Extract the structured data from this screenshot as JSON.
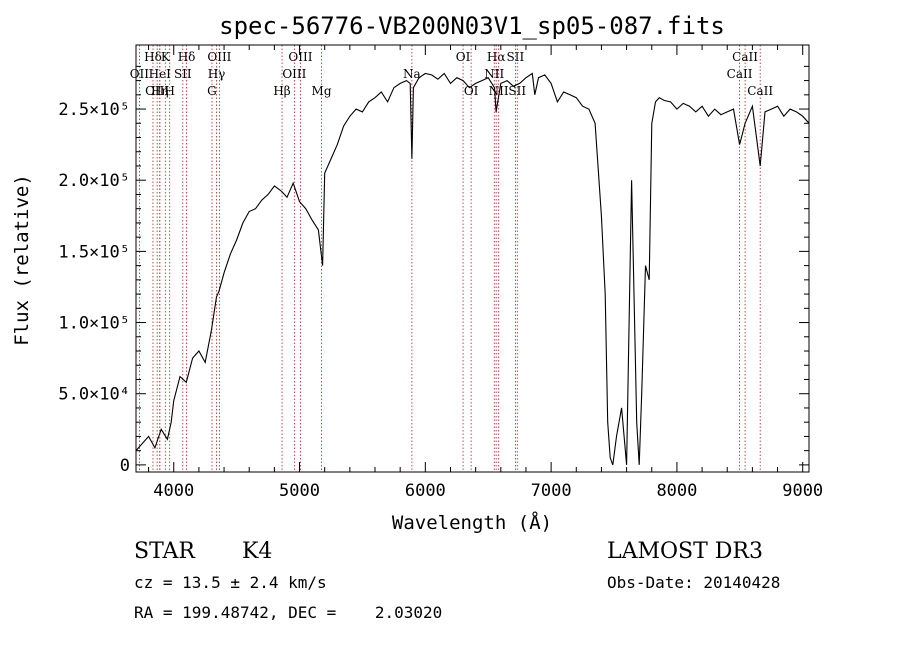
{
  "chart_data": {
    "type": "line",
    "title": "spec-56776-VB200N03V1_sp05-087.fits",
    "xlabel": "Wavelength (Å)",
    "ylabel": "Flux (relative)",
    "xlim": [
      3700,
      9050
    ],
    "ylim": [
      -5000,
      295000
    ],
    "x_ticks": [
      4000,
      5000,
      6000,
      7000,
      8000,
      9000
    ],
    "x_tick_labels": [
      "4000",
      "5000",
      "6000",
      "7000",
      "8000",
      "9000"
    ],
    "y_ticks": [
      0,
      50000,
      100000,
      150000,
      200000,
      250000
    ],
    "y_tick_labels": [
      "0",
      "5.0×10⁴",
      "1.0×10⁵",
      "1.5×10⁵",
      "2.0×10⁵",
      "2.5×10⁵"
    ],
    "series": [
      {
        "name": "spectrum",
        "x": [
          3700,
          3750,
          3800,
          3850,
          3900,
          3950,
          3980,
          4000,
          4050,
          4100,
          4150,
          4200,
          4250,
          4300,
          4340,
          4360,
          4400,
          4450,
          4500,
          4550,
          4600,
          4650,
          4700,
          4750,
          4800,
          4860,
          4900,
          4950,
          5000,
          5050,
          5100,
          5150,
          5183,
          5200,
          5250,
          5300,
          5350,
          5400,
          5450,
          5500,
          5550,
          5600,
          5650,
          5700,
          5750,
          5800,
          5850,
          5880,
          5893,
          5905,
          5950,
          6000,
          6050,
          6100,
          6150,
          6200,
          6250,
          6300,
          6350,
          6400,
          6450,
          6500,
          6550,
          6563,
          6600,
          6650,
          6700,
          6750,
          6800,
          6850,
          6870,
          6900,
          6950,
          7000,
          7050,
          7100,
          7150,
          7200,
          7250,
          7300,
          7350,
          7400,
          7430,
          7450,
          7470,
          7490,
          7520,
          7560,
          7600,
          7640,
          7680,
          7700,
          7720,
          7750,
          7780,
          7800,
          7830,
          7860,
          7900,
          7950,
          8000,
          8050,
          8100,
          8150,
          8200,
          8250,
          8300,
          8350,
          8400,
          8450,
          8498,
          8542,
          8600,
          8662,
          8700,
          8750,
          8800,
          8850,
          8900,
          8950,
          9000,
          9050
        ],
        "y": [
          10000,
          15000,
          20000,
          12000,
          25000,
          18000,
          30000,
          45000,
          62000,
          58000,
          75000,
          80000,
          72000,
          95000,
          118000,
          122000,
          135000,
          148000,
          158000,
          170000,
          178000,
          180000,
          186000,
          190000,
          196000,
          192000,
          188000,
          198000,
          185000,
          180000,
          172000,
          165000,
          140000,
          205000,
          215000,
          225000,
          238000,
          245000,
          250000,
          248000,
          255000,
          258000,
          262000,
          255000,
          265000,
          268000,
          270000,
          268000,
          215000,
          265000,
          272000,
          275000,
          274000,
          271000,
          275000,
          268000,
          272000,
          270000,
          265000,
          268000,
          270000,
          272000,
          265000,
          248000,
          268000,
          270000,
          266000,
          268000,
          272000,
          275000,
          260000,
          272000,
          274000,
          268000,
          255000,
          262000,
          260000,
          258000,
          252000,
          250000,
          240000,
          175000,
          120000,
          30000,
          5000,
          0,
          20000,
          40000,
          0,
          200000,
          30000,
          0,
          50000,
          140000,
          130000,
          240000,
          255000,
          258000,
          256000,
          255000,
          250000,
          254000,
          252000,
          248000,
          252000,
          245000,
          250000,
          246000,
          248000,
          250000,
          225000,
          240000,
          252000,
          210000,
          248000,
          250000,
          252000,
          245000,
          250000,
          248000,
          245000,
          240000
        ]
      }
    ],
    "spectral_lines": [
      {
        "label": "Hδ",
        "x": 3835,
        "row": 1
      },
      {
        "label": "OII",
        "x": 3727,
        "row": 2
      },
      {
        "label": "OIII",
        "x": 3868,
        "row": 3
      },
      {
        "label": "HeI",
        "x": 3889,
        "row": 2
      },
      {
        "label": "Hη",
        "x": 3889,
        "row": 3
      },
      {
        "label": "K",
        "x": 3933,
        "row": 1
      },
      {
        "label": "H",
        "x": 3968,
        "row": 3
      },
      {
        "label": "Hδ",
        "x": 4102,
        "row": 1
      },
      {
        "label": "SII",
        "x": 4072,
        "row": 2
      },
      {
        "label": "OIII",
        "x": 4363,
        "row": 1
      },
      {
        "label": "Hγ",
        "x": 4340,
        "row": 2
      },
      {
        "label": "G",
        "x": 4304,
        "row": 3
      },
      {
        "label": "Hβ",
        "x": 4861,
        "row": 3
      },
      {
        "label": "OIII",
        "x": 5007,
        "row": 1
      },
      {
        "label": "OIII",
        "x": 4959,
        "row": 2
      },
      {
        "label": "Mg",
        "x": 5175,
        "row": 3
      },
      {
        "label": "Na",
        "x": 5893,
        "row": 2
      },
      {
        "label": "OI",
        "x": 6300,
        "row": 1
      },
      {
        "label": "OI",
        "x": 6364,
        "row": 3
      },
      {
        "label": "Hα",
        "x": 6563,
        "row": 1
      },
      {
        "label": "NII",
        "x": 6548,
        "row": 2
      },
      {
        "label": "NII",
        "x": 6583,
        "row": 3
      },
      {
        "label": "SII",
        "x": 6716,
        "row": 1
      },
      {
        "label": "SII",
        "x": 6731,
        "row": 3
      },
      {
        "label": "CaII",
        "x": 8542,
        "row": 1
      },
      {
        "label": "CaII",
        "x": 8498,
        "row": 2
      },
      {
        "label": "CaII",
        "x": 8662,
        "row": 3
      }
    ],
    "colors": {
      "spectrum": "#000000",
      "line_markers": "#b22222",
      "axes": "#000000"
    }
  },
  "info": {
    "object_class": "STAR",
    "subclass": "K4",
    "survey": "LAMOST DR3",
    "cz_label": "cz = 13.5 ± 2.4 km/s",
    "obs_date_label": "Obs-Date: 20140428",
    "coords_label": "RA = 199.48742, DEC =    2.03020"
  }
}
